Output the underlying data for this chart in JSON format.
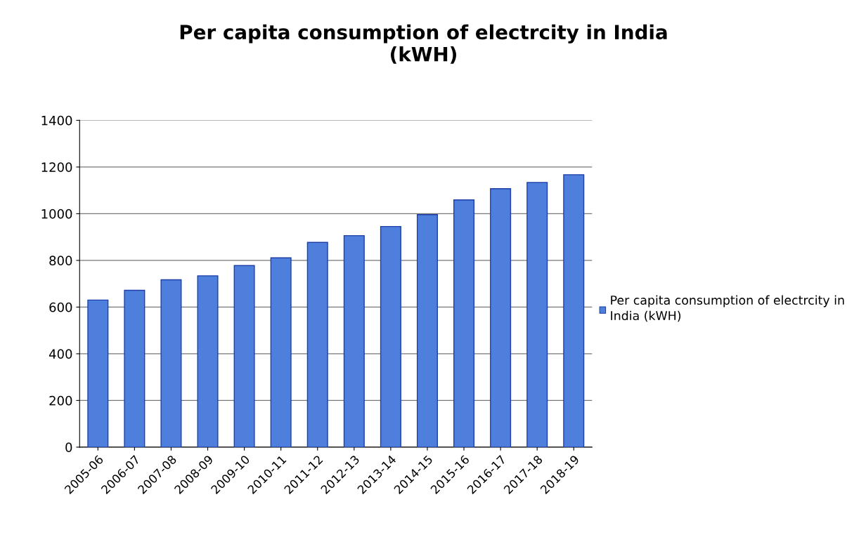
{
  "chart_data": {
    "type": "bar",
    "title": "Per capita consumption of electrcity in India\n(kWH)",
    "categories": [
      "2005-06",
      "2006-07",
      "2007-08",
      "2008-09",
      "2009-10",
      "2010-11",
      "2011-12",
      "2012-13",
      "2013-14",
      "2014-15",
      "2015-16",
      "2016-17",
      "2017-18",
      "2018-19"
    ],
    "series": [
      {
        "name": "Per capita consumption of electrcity in India (kWH)",
        "color": "#4f7fdc",
        "values": [
          630,
          672,
          717,
          734,
          778,
          811,
          877,
          906,
          945,
          996,
          1059,
          1107,
          1134,
          1167
        ]
      }
    ],
    "ylim": [
      0,
      1400
    ],
    "yticks": [
      0,
      200,
      400,
      600,
      800,
      1000,
      1200,
      1400
    ],
    "grid": "y",
    "legend": "right"
  }
}
